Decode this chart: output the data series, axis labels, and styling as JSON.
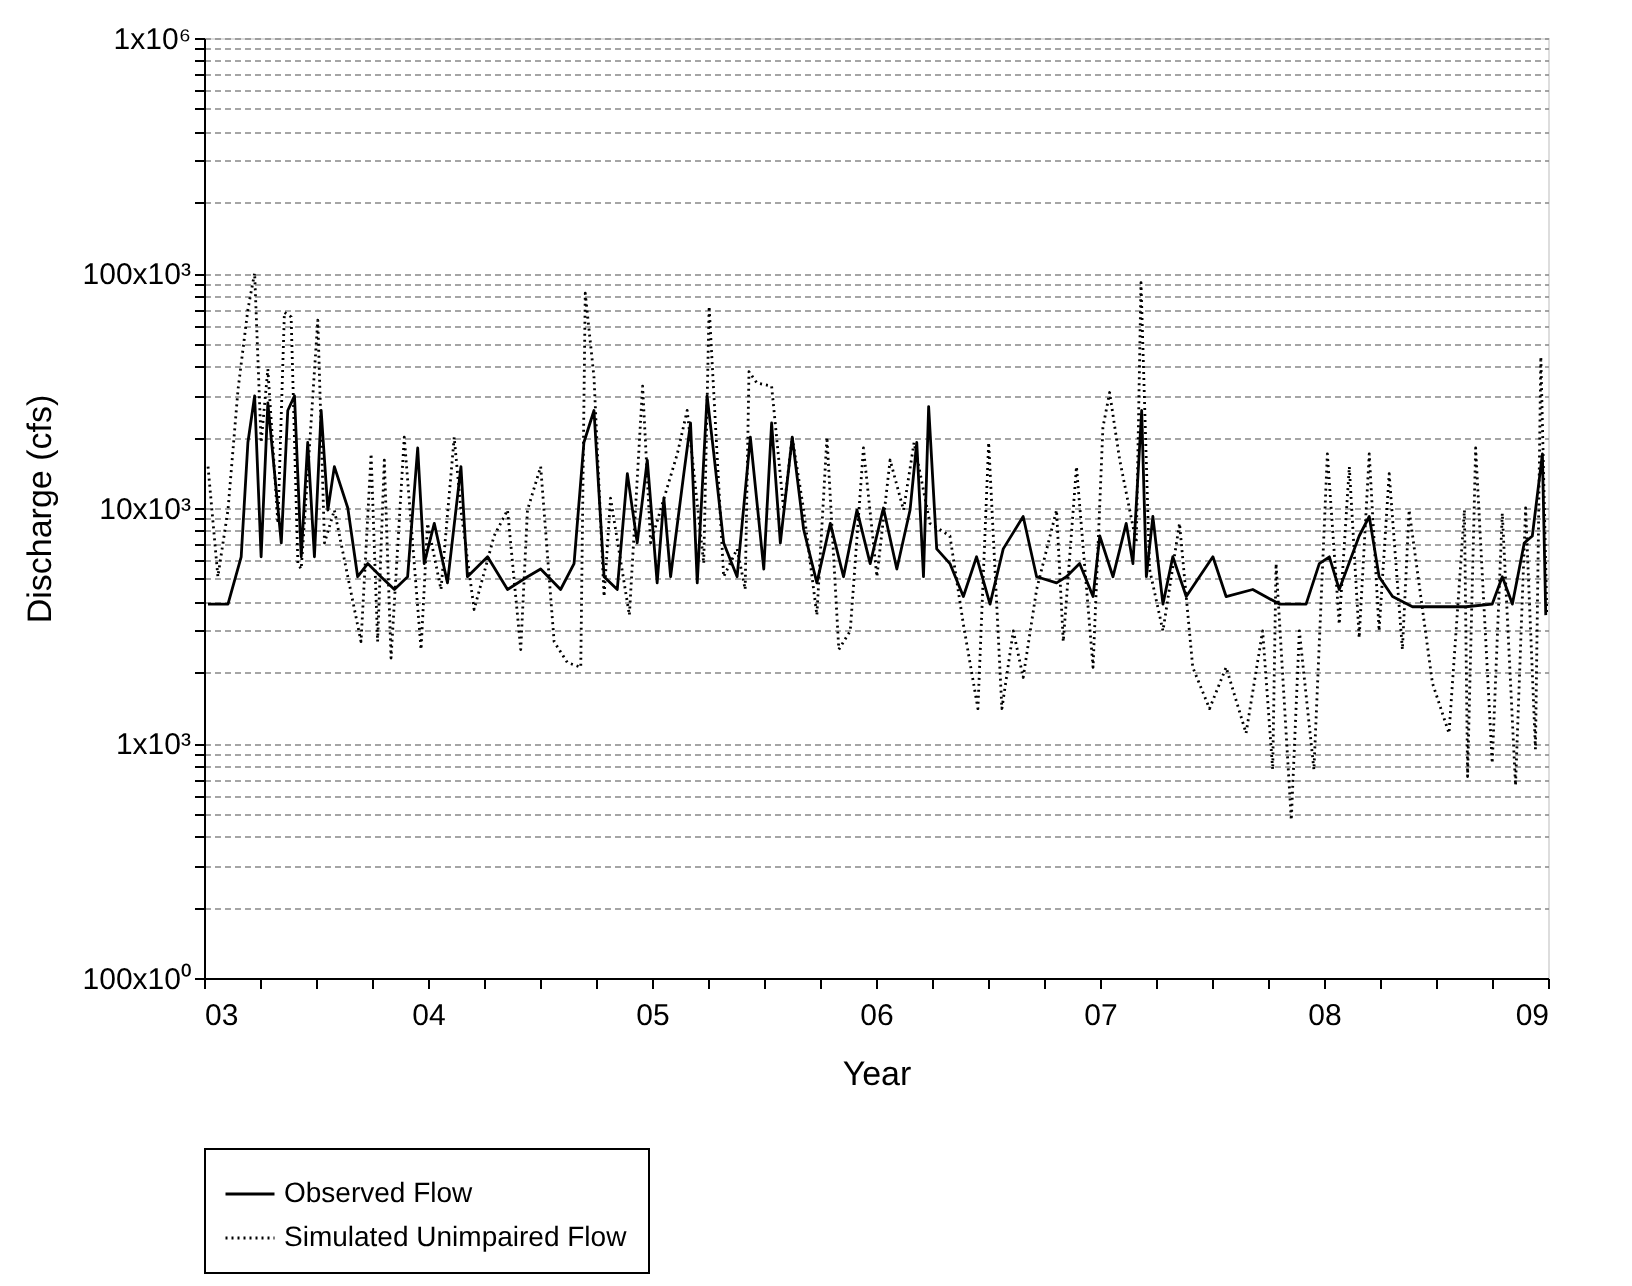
{
  "chart_data": {
    "type": "line",
    "xlabel": "Year",
    "ylabel": "Discharge (cfs)",
    "log": "y",
    "grid": "y",
    "legend": "bottom left",
    "marker": "none",
    "xlim": [
      2003,
      2009
    ],
    "xticks": [
      {
        "value": 2003,
        "label": "03"
      },
      {
        "value": 2003.25,
        "label": null
      },
      {
        "value": 2003.5,
        "label": null
      },
      {
        "value": 2003.75,
        "label": null
      },
      {
        "value": 2004,
        "label": "04"
      },
      {
        "value": 2004.25,
        "label": null
      },
      {
        "value": 2004.5,
        "label": null
      },
      {
        "value": 2004.75,
        "label": null
      },
      {
        "value": 2005,
        "label": "05"
      },
      {
        "value": 2005.25,
        "label": null
      },
      {
        "value": 2005.5,
        "label": null
      },
      {
        "value": 2005.75,
        "label": null
      },
      {
        "value": 2006,
        "label": "06"
      },
      {
        "value": 2006.25,
        "label": null
      },
      {
        "value": 2006.5,
        "label": null
      },
      {
        "value": 2006.75,
        "label": null
      },
      {
        "value": 2007,
        "label": "07"
      },
      {
        "value": 2007.25,
        "label": null
      },
      {
        "value": 2007.5,
        "label": null
      },
      {
        "value": 2007.75,
        "label": null
      },
      {
        "value": 2008,
        "label": "08"
      },
      {
        "value": 2008.25,
        "label": null
      },
      {
        "value": 2008.5,
        "label": null
      },
      {
        "value": 2008.75,
        "label": null
      },
      {
        "value": 2009,
        "label": "09"
      }
    ],
    "ylim": [
      100,
      1000000
    ],
    "yticks": [
      {
        "value": 100,
        "label": "100x10⁰"
      },
      {
        "value": 200,
        "label": null
      },
      {
        "value": 300,
        "label": null
      },
      {
        "value": 400,
        "label": null
      },
      {
        "value": 500,
        "label": null
      },
      {
        "value": 600,
        "label": null
      },
      {
        "value": 700,
        "label": null
      },
      {
        "value": 800,
        "label": null
      },
      {
        "value": 900,
        "label": null
      },
      {
        "value": 1000,
        "label": "1x10³"
      },
      {
        "value": 2000,
        "label": null
      },
      {
        "value": 3000,
        "label": null
      },
      {
        "value": 4000,
        "label": null
      },
      {
        "value": 5000,
        "label": null
      },
      {
        "value": 6000,
        "label": null
      },
      {
        "value": 7000,
        "label": null
      },
      {
        "value": 8000,
        "label": null
      },
      {
        "value": 9000,
        "label": null
      },
      {
        "value": 10000,
        "label": "10x10³"
      },
      {
        "value": 20000,
        "label": null
      },
      {
        "value": 30000,
        "label": null
      },
      {
        "value": 40000,
        "label": null
      },
      {
        "value": 50000,
        "label": null
      },
      {
        "value": 60000,
        "label": null
      },
      {
        "value": 70000,
        "label": null
      },
      {
        "value": 80000,
        "label": null
      },
      {
        "value": 90000,
        "label": null
      },
      {
        "value": 100000,
        "label": "100x10³"
      },
      {
        "value": 200000,
        "label": null
      },
      {
        "value": 300000,
        "label": null
      },
      {
        "value": 400000,
        "label": null
      },
      {
        "value": 500000,
        "label": null
      },
      {
        "value": 600000,
        "label": null
      },
      {
        "value": 700000,
        "label": null
      },
      {
        "value": 800000,
        "label": null
      },
      {
        "value": 900000,
        "label": null
      },
      {
        "value": 1000000,
        "label": "1x10⁶"
      }
    ],
    "series": [
      {
        "name": "Observed Flow",
        "color": "#000000",
        "line_style": "solid",
        "x": [
          2003.018,
          2003.107,
          2003.166,
          2003.196,
          2003.226,
          2003.255,
          2003.285,
          2003.345,
          2003.374,
          2003.404,
          2003.434,
          2003.463,
          2003.493,
          2003.523,
          2003.553,
          2003.582,
          2003.642,
          2003.686,
          2003.731,
          2003.79,
          2003.85,
          2003.909,
          2003.954,
          2003.983,
          2004.028,
          2004.087,
          2004.147,
          2004.176,
          2004.266,
          2004.355,
          2004.444,
          2004.503,
          2004.592,
          2004.652,
          2004.696,
          2004.741,
          2004.786,
          2004.845,
          2004.89,
          2004.934,
          2004.979,
          2005.023,
          2005.053,
          2005.083,
          2005.142,
          2005.172,
          2005.202,
          2005.246,
          2005.276,
          2005.32,
          2005.38,
          2005.439,
          2005.499,
          2005.534,
          2005.573,
          2005.626,
          2005.677,
          2005.736,
          2005.796,
          2005.855,
          2005.915,
          2005.974,
          2006.033,
          2006.093,
          2006.152,
          2006.182,
          2006.212,
          2006.235,
          2006.271,
          2006.33,
          2006.39,
          2006.449,
          2006.509,
          2006.568,
          2006.657,
          2006.717,
          2006.806,
          2006.85,
          2006.909,
          2006.969,
          2006.999,
          2007.058,
          2007.117,
          2007.147,
          2007.186,
          2007.207,
          2007.236,
          2007.281,
          2007.325,
          2007.385,
          2007.444,
          2007.504,
          2007.563,
          2007.682,
          2007.801,
          2007.92,
          2007.979,
          2008.024,
          2008.068,
          2008.157,
          2008.202,
          2008.246,
          2008.306,
          2008.395,
          2008.514,
          2008.633,
          2008.751,
          2008.796,
          2008.841,
          2008.894,
          2008.93,
          2008.975,
          2008.99
        ],
        "values": [
          3900,
          3900,
          6200,
          19000,
          30000,
          6200,
          28000,
          7100,
          26000,
          30000,
          6200,
          19000,
          6200,
          26000,
          9800,
          15000,
          10000,
          5100,
          5800,
          5100,
          4500,
          5100,
          18000,
          5800,
          8600,
          4800,
          15000,
          5100,
          6200,
          4500,
          5100,
          5500,
          4500,
          5800,
          19000,
          26000,
          5100,
          4500,
          14000,
          7100,
          16000,
          4800,
          11000,
          5100,
          14000,
          23000,
          4800,
          30000,
          17000,
          7100,
          5100,
          20000,
          5500,
          23000,
          7100,
          20000,
          8100,
          4800,
          8600,
          5100,
          9800,
          5800,
          10000,
          5500,
          9800,
          19000,
          5100,
          27000,
          6700,
          5800,
          4200,
          6200,
          3900,
          6700,
          9200,
          5100,
          4800,
          5100,
          5800,
          4200,
          7600,
          5100,
          8600,
          5800,
          26000,
          5100,
          9200,
          3900,
          6200,
          4200,
          5100,
          6200,
          4200,
          4500,
          3900,
          3900,
          5800,
          6200,
          4500,
          7600,
          9200,
          5100,
          4200,
          3800,
          3800,
          3800,
          3900,
          5100,
          3900,
          7100,
          7600,
          17000,
          3500
        ]
      },
      {
        "name": "Simulated Unimpaired Flow",
        "color": "#000000",
        "line_style": "dotted",
        "x": [
          2003.018,
          2003.062,
          2003.107,
          2003.152,
          2003.196,
          2003.226,
          2003.255,
          2003.285,
          2003.33,
          2003.359,
          2003.389,
          2003.419,
          2003.434,
          2003.463,
          2003.508,
          2003.538,
          2003.582,
          2003.642,
          2003.701,
          2003.746,
          2003.775,
          2003.805,
          2003.835,
          2003.894,
          2003.969,
          2003.998,
          2004.058,
          2004.117,
          2004.147,
          2004.206,
          2004.295,
          2004.355,
          2004.414,
          2004.444,
          2004.503,
          2004.563,
          2004.622,
          2004.682,
          2004.702,
          2004.741,
          2004.786,
          2004.815,
          2004.899,
          2004.958,
          2004.994,
          2005.113,
          2005.157,
          2005.231,
          2005.255,
          2005.32,
          2005.38,
          2005.416,
          2005.433,
          2005.469,
          2005.534,
          2005.588,
          2005.626,
          2005.677,
          2005.736,
          2005.781,
          2005.834,
          2005.885,
          2005.944,
          2006.004,
          2006.063,
          2006.123,
          2006.17,
          2006.241,
          2006.33,
          2006.39,
          2006.455,
          2006.503,
          2006.562,
          2006.613,
          2006.657,
          2006.717,
          2006.806,
          2006.836,
          2006.895,
          2006.969,
          2007.013,
          2007.043,
          2007.088,
          2007.162,
          2007.183,
          2007.221,
          2007.281,
          2007.355,
          2007.414,
          2007.489,
          2007.563,
          2007.652,
          2007.726,
          2007.771,
          2007.786,
          2007.854,
          2007.89,
          2007.955,
          2008.015,
          2008.068,
          2008.113,
          2008.157,
          2008.202,
          2008.246,
          2008.291,
          2008.35,
          2008.38,
          2008.484,
          2008.558,
          2008.627,
          2008.641,
          2008.677,
          2008.751,
          2008.796,
          2008.855,
          2008.9,
          2008.944,
          2008.968,
          2008.995
        ],
        "values": [
          15000,
          5100,
          9800,
          32000,
          70000,
          100000,
          19000,
          39000,
          8600,
          68000,
          65000,
          5800,
          5500,
          14000,
          63000,
          7100,
          9800,
          5100,
          2700,
          17000,
          2700,
          16000,
          2300,
          20000,
          2500,
          8600,
          4500,
          20000,
          9800,
          3700,
          7600,
          9800,
          2500,
          9800,
          15000,
          2700,
          2200,
          2100,
          82000,
          36000,
          4200,
          11000,
          3500,
          33000,
          7100,
          17000,
          26000,
          5800,
          72000,
          5100,
          6700,
          4500,
          38000,
          34000,
          33000,
          9800,
          20000,
          9800,
          3500,
          20000,
          2500,
          3000,
          18000,
          5100,
          16000,
          9800,
          19000,
          8600,
          7600,
          3200,
          1400,
          19000,
          1400,
          3000,
          1900,
          4500,
          9800,
          2700,
          15000,
          2100,
          22000,
          31000,
          16000,
          7100,
          91000,
          5500,
          3000,
          8600,
          2100,
          1400,
          2100,
          1100,
          3000,
          770,
          5800,
          470,
          3000,
          770,
          17000,
          3200,
          15000,
          2800,
          17000,
          3000,
          14000,
          2500,
          9800,
          1800,
          1100,
          9800,
          720,
          18000,
          820,
          9500,
          660,
          10000,
          940,
          44000,
          3500
        ]
      }
    ]
  }
}
